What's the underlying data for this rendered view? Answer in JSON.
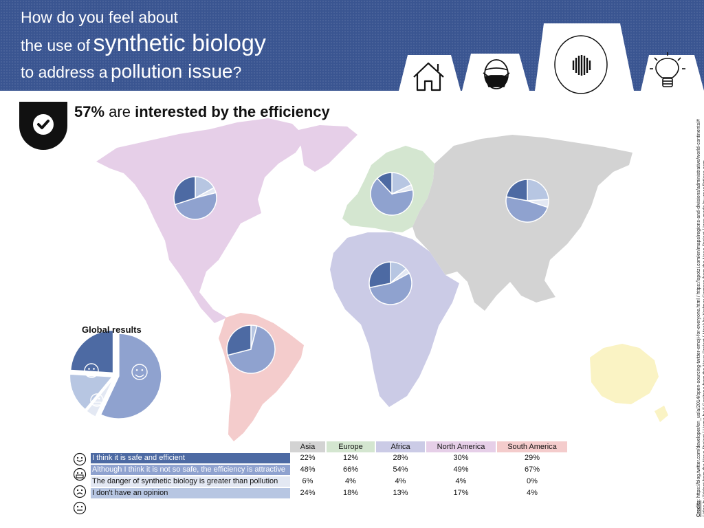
{
  "header": {
    "line1": "How do you feel about",
    "line2_small": "the use of",
    "line2_big": "synthetic biology",
    "line3_small": "to address a",
    "line3_big": "pollution issue",
    "line3_end": "?"
  },
  "headline": {
    "pct": "57%",
    "middle": " are ",
    "rest": "interested by the efficiency"
  },
  "global_title": "Global results",
  "table": {
    "columns": [
      "Asia",
      "Europe",
      "Africa",
      "North America",
      "South America"
    ],
    "rows": [
      {
        "label": "I think it is safe and efficient",
        "values": [
          "22%",
          "12%",
          "28%",
          "30%",
          "29%"
        ]
      },
      {
        "label": "Although I think it is not so safe, the efficiency is attractive",
        "values": [
          "48%",
          "66%",
          "54%",
          "49%",
          "67%"
        ]
      },
      {
        "label": "The danger of synthetic biology is greater than pollution",
        "values": [
          "6%",
          "4%",
          "4%",
          "4%",
          "0%"
        ]
      },
      {
        "label": "I don't have an opinion",
        "values": [
          "24%",
          "18%",
          "13%",
          "17%",
          "4%"
        ]
      }
    ]
  },
  "credits": {
    "label": "Credits",
    "text": ": https://blog.twitter.com/developer/en_us/a/2014/open-sourcing-twitter-emoji-for-everyone.html / https://spotzi.com/en/maps/regions-and-divisions/administrative/world-continents/# / Idea by Trident from the Noun Project / Home by Il Capitano from the Noun Project / Mask by Yorlmar Campos from the Noun Project / Icon made by www.flaticon.com"
  },
  "colors": {
    "header_bg": "#3a5591",
    "series": [
      "#4d6aa3",
      "#8fa2cf",
      "#e3e8f3",
      "#b7c6e2"
    ],
    "asia": "#d3d3d3",
    "europe": "#d4e6d0",
    "africa": "#cbcbe6",
    "north_america": "#e6cfe8",
    "south_america": "#f4cccc",
    "oceania": "#faf3c4"
  },
  "chart_data": [
    {
      "type": "pie",
      "title": "Global results",
      "categories": [
        "I think it is safe and efficient",
        "Although I think it is not so safe, the efficiency is attractive",
        "The danger of synthetic biology is greater than pollution",
        "I don't have an opinion"
      ],
      "values": [
        24,
        57,
        4,
        15
      ]
    },
    {
      "type": "table",
      "columns": [
        "Asia",
        "Europe",
        "Africa",
        "North America",
        "South America"
      ],
      "series": [
        {
          "name": "I think it is safe and efficient",
          "values": [
            22,
            12,
            28,
            30,
            29
          ]
        },
        {
          "name": "Although I think it is not so safe, the efficiency is attractive",
          "values": [
            48,
            66,
            54,
            49,
            67
          ]
        },
        {
          "name": "The danger of synthetic biology is greater than pollution",
          "values": [
            6,
            4,
            4,
            4,
            0
          ]
        },
        {
          "name": "I don't have an opinion",
          "values": [
            24,
            18,
            13,
            17,
            4
          ]
        }
      ]
    }
  ]
}
